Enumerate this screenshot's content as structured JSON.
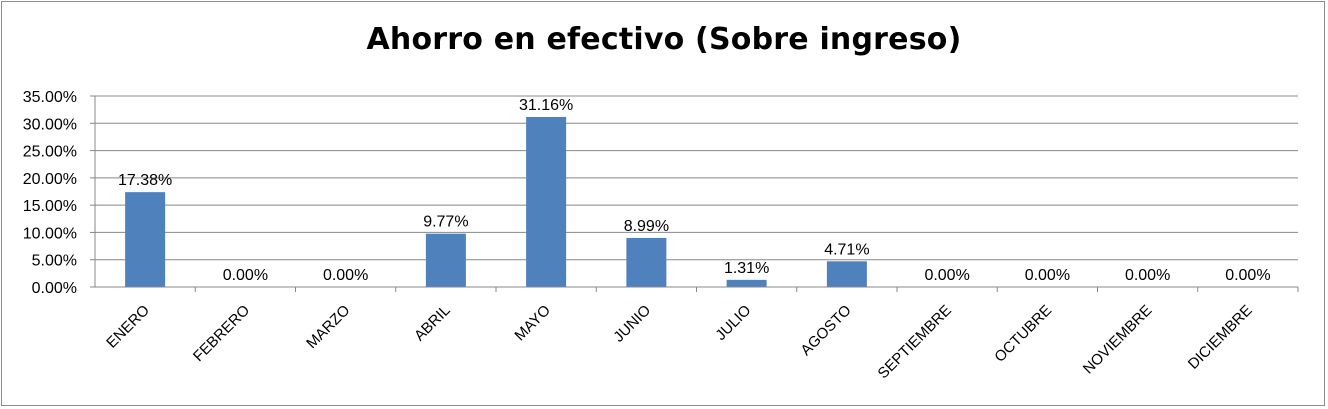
{
  "chart_data": {
    "type": "bar",
    "title": "Ahorro en efectivo (Sobre ingreso)",
    "categories": [
      "ENERO",
      "FEBRERO",
      "MARZO",
      "ABRIL",
      "MAYO",
      "JUNIO",
      "JULIO",
      "AGOSTO",
      "SEPTIEMBRE",
      "OCTUBRE",
      "NOVIEMBRE",
      "DICIEMBRE"
    ],
    "values": [
      17.38,
      0.0,
      0.0,
      9.77,
      31.16,
      8.99,
      1.31,
      4.71,
      0.0,
      0.0,
      0.0,
      0.0
    ],
    "data_labels": [
      "17.38%",
      "0.00%",
      "0.00%",
      "9.77%",
      "31.16%",
      "8.99%",
      "1.31%",
      "4.71%",
      "0.00%",
      "0.00%",
      "0.00%",
      "0.00%"
    ],
    "ylim": [
      0,
      35
    ],
    "yticks": [
      0,
      5,
      10,
      15,
      20,
      25,
      30,
      35
    ],
    "ytick_labels": [
      "0.00%",
      "5.00%",
      "10.00%",
      "15.00%",
      "20.00%",
      "25.00%",
      "30.00%",
      "35.00%"
    ],
    "grid": true,
    "bar_color": "#4f81bd",
    "grid_color": "#888888"
  }
}
